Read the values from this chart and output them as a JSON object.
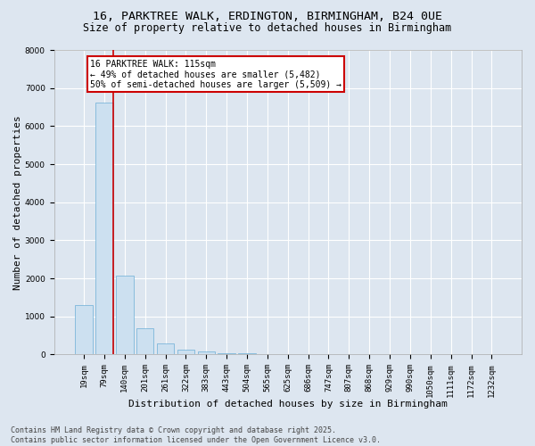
{
  "title_line1": "16, PARKTREE WALK, ERDINGTON, BIRMINGHAM, B24 0UE",
  "title_line2": "Size of property relative to detached houses in Birmingham",
  "xlabel": "Distribution of detached houses by size in Birmingham",
  "ylabel": "Number of detached properties",
  "categories": [
    "19sqm",
    "79sqm",
    "140sqm",
    "201sqm",
    "261sqm",
    "322sqm",
    "383sqm",
    "443sqm",
    "504sqm",
    "565sqm",
    "625sqm",
    "686sqm",
    "747sqm",
    "807sqm",
    "868sqm",
    "929sqm",
    "990sqm",
    "1050sqm",
    "1111sqm",
    "1172sqm",
    "1232sqm"
  ],
  "values": [
    1300,
    6620,
    2080,
    680,
    290,
    130,
    70,
    40,
    40,
    0,
    0,
    0,
    0,
    0,
    0,
    0,
    0,
    0,
    0,
    0,
    0
  ],
  "bar_color": "#cce0f0",
  "bar_edge_color": "#6baed6",
  "vline_x_pos": 1.42,
  "vline_color": "#cc0000",
  "annotation_text": "16 PARKTREE WALK: 115sqm\n← 49% of detached houses are smaller (5,482)\n50% of semi-detached houses are larger (5,509) →",
  "annotation_box_color": "#ffffff",
  "annotation_box_edge": "#cc0000",
  "ylim": [
    0,
    8000
  ],
  "yticks": [
    0,
    1000,
    2000,
    3000,
    4000,
    5000,
    6000,
    7000,
    8000
  ],
  "background_color": "#dde6f0",
  "plot_bg_color": "#dde6f0",
  "grid_color": "#ffffff",
  "footer_line1": "Contains HM Land Registry data © Crown copyright and database right 2025.",
  "footer_line2": "Contains public sector information licensed under the Open Government Licence v3.0.",
  "title_fontsize": 9.5,
  "subtitle_fontsize": 8.5,
  "xlabel_fontsize": 8,
  "ylabel_fontsize": 8,
  "tick_fontsize": 6.5,
  "footer_fontsize": 6,
  "annot_fontsize": 7
}
